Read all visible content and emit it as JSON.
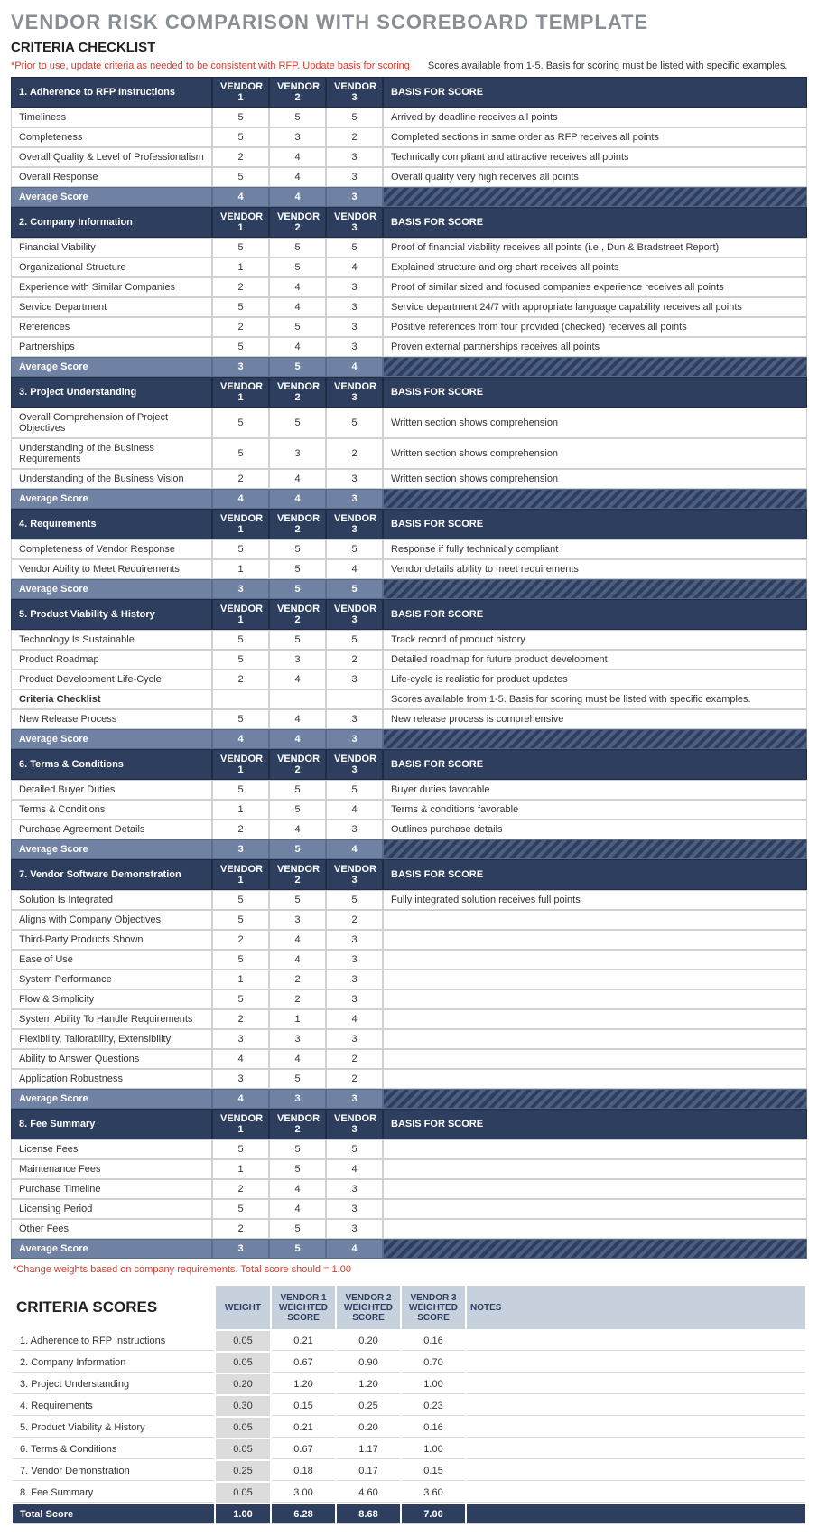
{
  "page": {
    "title": "VENDOR RISK COMPARISON WITH SCOREBOARD TEMPLATE",
    "subtitle": "CRITERIA CHECKLIST",
    "note_red": "*Prior to use, update criteria as needed to be consistent with RFP. Update basis for scoring",
    "note_black": "Scores available from 1-5. Basis for scoring must be listed with specific examples.",
    "footnote": "*Change weights based on company requirements. Total score should = 1.00",
    "scores_title": "CRITERIA SCORES"
  },
  "cols": {
    "v1": "VENDOR 1",
    "v2": "VENDOR 2",
    "v3": "VENDOR 3",
    "basis": "BASIS FOR SCORE",
    "avg": "Average Score"
  },
  "sections": [
    {
      "title": "1. Adherence to RFP Instructions",
      "rows": [
        {
          "label": "Timeliness",
          "v1": "5",
          "v2": "5",
          "v3": "5",
          "basis": "Arrived by deadline receives all points"
        },
        {
          "label": "Completeness",
          "v1": "5",
          "v2": "3",
          "v3": "2",
          "basis": "Completed sections in same order as RFP receives all points"
        },
        {
          "label": "Overall Quality & Level of Professionalism",
          "v1": "2",
          "v2": "4",
          "v3": "3",
          "basis": "Technically compliant and attractive receives all points"
        },
        {
          "label": "Overall Response",
          "v1": "5",
          "v2": "4",
          "v3": "3",
          "basis": "Overall quality very high receives all points"
        }
      ],
      "avg": {
        "v1": "4",
        "v2": "4",
        "v3": "3"
      }
    },
    {
      "title": "2. Company Information",
      "rows": [
        {
          "label": "Financial Viability",
          "v1": "5",
          "v2": "5",
          "v3": "5",
          "basis": "Proof of financial viability receives all points (i.e., Dun & Bradstreet Report)"
        },
        {
          "label": "Organizational Structure",
          "v1": "1",
          "v2": "5",
          "v3": "4",
          "basis": "Explained structure and org chart receives all points"
        },
        {
          "label": "Experience with Similar Companies",
          "v1": "2",
          "v2": "4",
          "v3": "3",
          "basis": "Proof of similar sized and focused companies experience receives all points"
        },
        {
          "label": "Service Department",
          "v1": "5",
          "v2": "4",
          "v3": "3",
          "basis": "Service department 24/7 with appropriate language capability receives all points"
        },
        {
          "label": "References",
          "v1": "2",
          "v2": "5",
          "v3": "3",
          "basis": "Positive references from four provided (checked) receives all points"
        },
        {
          "label": "Partnerships",
          "v1": "5",
          "v2": "4",
          "v3": "3",
          "basis": "Proven external partnerships receives all points"
        }
      ],
      "avg": {
        "v1": "3",
        "v2": "5",
        "v3": "4"
      }
    },
    {
      "title": "3. Project Understanding",
      "rows": [
        {
          "label": "Overall Comprehension of Project Objectives",
          "v1": "5",
          "v2": "5",
          "v3": "5",
          "basis": "Written section shows comprehension"
        },
        {
          "label": "Understanding of the Business Requirements",
          "v1": "5",
          "v2": "3",
          "v3": "2",
          "basis": "Written section shows comprehension"
        },
        {
          "label": "Understanding of the Business Vision",
          "v1": "2",
          "v2": "4",
          "v3": "3",
          "basis": "Written section shows comprehension"
        }
      ],
      "avg": {
        "v1": "4",
        "v2": "4",
        "v3": "3"
      }
    },
    {
      "title": "4. Requirements",
      "rows": [
        {
          "label": "Completeness of Vendor Response",
          "v1": "5",
          "v2": "5",
          "v3": "5",
          "basis": "Response if fully technically compliant"
        },
        {
          "label": "Vendor Ability to Meet Requirements",
          "v1": "1",
          "v2": "5",
          "v3": "4",
          "basis": "Vendor details ability to meet requirements"
        }
      ],
      "avg": {
        "v1": "3",
        "v2": "5",
        "v3": "5"
      }
    },
    {
      "title": "5. Product Viability & History",
      "rows": [
        {
          "label": "Technology Is Sustainable",
          "v1": "5",
          "v2": "5",
          "v3": "5",
          "basis": "Track record of product history"
        },
        {
          "label": "Product Roadmap",
          "v1": "5",
          "v2": "3",
          "v3": "2",
          "basis": "Detailed roadmap for future product development"
        },
        {
          "label": "Product Development Life-Cycle",
          "v1": "2",
          "v2": "4",
          "v3": "3",
          "basis": "Life-cycle is realistic for product updates"
        },
        {
          "label": "Criteria Checklist",
          "v1": "",
          "v2": "",
          "v3": "",
          "basis": "Scores available from 1-5. Basis for scoring must be listed with specific examples.",
          "bold": true
        },
        {
          "label": "New Release Process",
          "v1": "5",
          "v2": "4",
          "v3": "3",
          "basis": "New release process is comprehensive"
        }
      ],
      "avg": {
        "v1": "4",
        "v2": "4",
        "v3": "3"
      }
    },
    {
      "title": "6. Terms & Conditions",
      "rows": [
        {
          "label": "Detailed Buyer Duties",
          "v1": "5",
          "v2": "5",
          "v3": "5",
          "basis": "Buyer duties favorable"
        },
        {
          "label": "Terms & Conditions",
          "v1": "1",
          "v2": "5",
          "v3": "4",
          "basis": "Terms & conditions favorable"
        },
        {
          "label": "Purchase Agreement Details",
          "v1": "2",
          "v2": "4",
          "v3": "3",
          "basis": "Outlines purchase details"
        }
      ],
      "avg": {
        "v1": "3",
        "v2": "5",
        "v3": "4"
      }
    },
    {
      "title": "7. Vendor Software Demonstration",
      "rows": [
        {
          "label": "Solution Is Integrated",
          "v1": "5",
          "v2": "5",
          "v3": "5",
          "basis": "Fully integrated solution receives full points"
        },
        {
          "label": "Aligns with Company Objectives",
          "v1": "5",
          "v2": "3",
          "v3": "2",
          "basis": ""
        },
        {
          "label": "Third-Party Products Shown",
          "v1": "2",
          "v2": "4",
          "v3": "3",
          "basis": ""
        },
        {
          "label": "Ease of Use",
          "v1": "5",
          "v2": "4",
          "v3": "3",
          "basis": ""
        },
        {
          "label": "System Performance",
          "v1": "1",
          "v2": "2",
          "v3": "3",
          "basis": ""
        },
        {
          "label": "Flow & Simplicity",
          "v1": "5",
          "v2": "2",
          "v3": "3",
          "basis": ""
        },
        {
          "label": "System Ability To Handle Requirements",
          "v1": "2",
          "v2": "1",
          "v3": "4",
          "basis": ""
        },
        {
          "label": "Flexibility, Tailorability, Extensibility",
          "v1": "3",
          "v2": "3",
          "v3": "3",
          "basis": ""
        },
        {
          "label": "Ability to Answer Questions",
          "v1": "4",
          "v2": "4",
          "v3": "2",
          "basis": ""
        },
        {
          "label": "Application Robustness",
          "v1": "3",
          "v2": "5",
          "v3": "2",
          "basis": ""
        }
      ],
      "avg": {
        "v1": "4",
        "v2": "3",
        "v3": "3"
      }
    },
    {
      "title": "8. Fee Summary",
      "rows": [
        {
          "label": "License Fees",
          "v1": "5",
          "v2": "5",
          "v3": "5",
          "basis": ""
        },
        {
          "label": "Maintenance Fees",
          "v1": "1",
          "v2": "5",
          "v3": "4",
          "basis": ""
        },
        {
          "label": "Purchase Timeline",
          "v1": "2",
          "v2": "4",
          "v3": "3",
          "basis": ""
        },
        {
          "label": "Licensing Period",
          "v1": "5",
          "v2": "4",
          "v3": "3",
          "basis": ""
        },
        {
          "label": "Other Fees",
          "v1": "2",
          "v2": "5",
          "v3": "3",
          "basis": ""
        }
      ],
      "avg": {
        "v1": "3",
        "v2": "5",
        "v3": "4"
      }
    }
  ],
  "scores": {
    "headers": {
      "weight": "WEIGHT",
      "v1": "VENDOR 1 WEIGHTED SCORE",
      "v2": "VENDOR 2 WEIGHTED SCORE",
      "v3": "VENDOR 3 WEIGHTED SCORE",
      "notes": "NOTES"
    },
    "rows": [
      {
        "label": "1. Adherence to RFP Instructions",
        "w": "0.05",
        "v1": "0.21",
        "v2": "0.20",
        "v3": "0.16",
        "notes": ""
      },
      {
        "label": "2. Company Information",
        "w": "0.05",
        "v1": "0.67",
        "v2": "0.90",
        "v3": "0.70",
        "notes": ""
      },
      {
        "label": "3. Project Understanding",
        "w": "0.20",
        "v1": "1.20",
        "v2": "1.20",
        "v3": "1.00",
        "notes": ""
      },
      {
        "label": "4. Requirements",
        "w": "0.30",
        "v1": "0.15",
        "v2": "0.25",
        "v3": "0.23",
        "notes": ""
      },
      {
        "label": "5. Product Viability & History",
        "w": "0.05",
        "v1": "0.21",
        "v2": "0.20",
        "v3": "0.16",
        "notes": ""
      },
      {
        "label": "6. Terms & Conditions",
        "w": "0.05",
        "v1": "0.67",
        "v2": "1.17",
        "v3": "1.00",
        "notes": ""
      },
      {
        "label": "7. Vendor Demonstration",
        "w": "0.25",
        "v1": "0.18",
        "v2": "0.17",
        "v3": "0.15",
        "notes": ""
      },
      {
        "label": "8. Fee Summary",
        "w": "0.05",
        "v1": "3.00",
        "v2": "4.60",
        "v3": "3.60",
        "notes": ""
      }
    ],
    "total": {
      "label": "Total Score",
      "w": "1.00",
      "v1": "6.28",
      "v2": "8.68",
      "v3": "7.00"
    }
  }
}
